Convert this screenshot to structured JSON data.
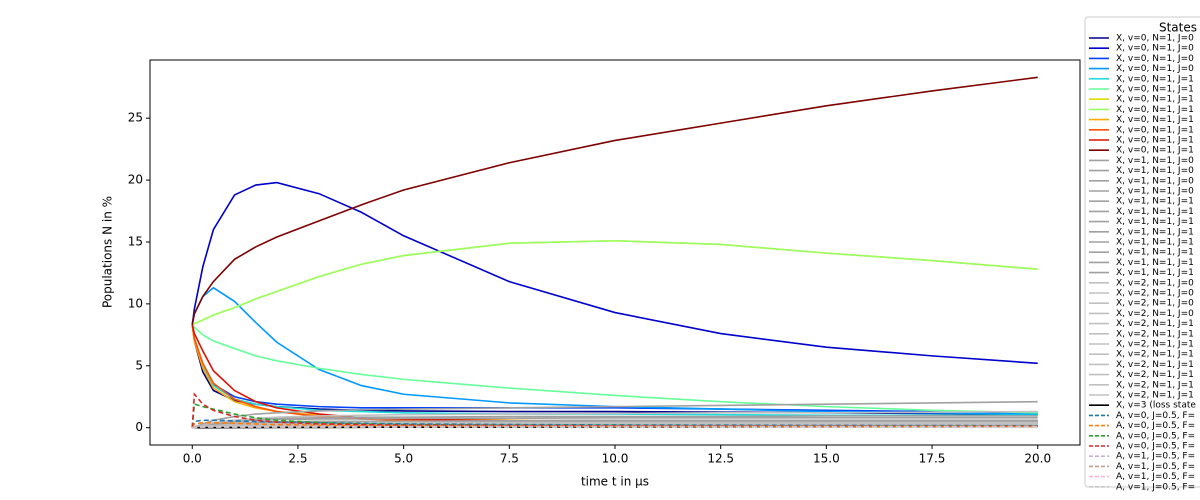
{
  "chart_data": {
    "type": "line",
    "xlabel": "time t in μs",
    "ylabel": "Populations N in %",
    "legend_title": "States",
    "xlim": [
      -1,
      21
    ],
    "ylim": [
      -1.4,
      29.7
    ],
    "xticks": [
      {
        "value": 0,
        "label": "0.0"
      },
      2.5,
      {
        "value": 5,
        "label": "5.0"
      },
      7.5,
      {
        "value": 10,
        "label": "10.0"
      },
      12.5,
      {
        "value": 15,
        "label": "15.0"
      },
      17.5,
      {
        "value": 20,
        "label": "20.0"
      }
    ],
    "yticks": [
      0,
      5,
      10,
      15,
      20,
      25
    ],
    "x": [
      0,
      0.05,
      0.25,
      0.5,
      1,
      1.5,
      2,
      3,
      4,
      5,
      7.5,
      10,
      12.5,
      15,
      17.5,
      20
    ],
    "series": [
      {
        "name": "X, v=0, N=1, J=0",
        "color": "#00008b",
        "values": [
          8.33,
          7.0,
          4.5,
          3.0,
          2.2,
          1.9,
          1.7,
          1.5,
          1.4,
          1.35,
          1.3,
          1.3,
          1.25,
          1.2,
          1.15,
          1.1
        ]
      },
      {
        "name": "X, v=0, N=1, J=0",
        "color": "#0000cc",
        "values": [
          8.33,
          9.6,
          13,
          16,
          18.8,
          19.6,
          19.8,
          18.9,
          17.4,
          15.5,
          11.8,
          9.3,
          7.6,
          6.5,
          5.8,
          5.2
        ]
      },
      {
        "name": "X, v=0, N=1, J=0",
        "color": "#0044ff",
        "values": [
          8.33,
          7.2,
          5,
          3.5,
          2.5,
          2.1,
          1.9,
          1.7,
          1.6,
          1.6,
          1.6,
          1.6,
          1.5,
          1.4,
          1.3,
          1.2
        ]
      },
      {
        "name": "X, v=0, N=1, J=0",
        "color": "#0099ff",
        "values": [
          8.33,
          9.2,
          10.6,
          11.3,
          10.2,
          8.5,
          6.9,
          4.7,
          3.4,
          2.7,
          2.0,
          1.7,
          1.5,
          1.3,
          1.2,
          1.1
        ]
      },
      {
        "name": "X, v=0, N=1, J=1",
        "color": "#22dddd",
        "values": [
          8.33,
          7.1,
          5,
          3.4,
          2.3,
          1.9,
          1.7,
          1.4,
          1.3,
          1.2,
          1.1,
          1.1,
          1.05,
          1.0,
          1.0,
          1.0
        ]
      },
      {
        "name": "X, v=0, N=1, J=1",
        "color": "#66ff99",
        "values": [
          8.33,
          8.1,
          7.5,
          7,
          6.4,
          5.8,
          5.4,
          4.8,
          4.3,
          3.9,
          3.2,
          2.6,
          2.1,
          1.7,
          1.4,
          1.2
        ]
      },
      {
        "name": "X, v=0, N=1, J=1",
        "color": "#dddd00",
        "values": [
          8.33,
          8.4,
          8.7,
          9.1,
          9.7,
          10.4,
          11,
          12.2,
          13.2,
          13.9,
          14.9,
          15.1,
          14.8,
          14.1,
          13.5,
          12.8
        ]
      },
      {
        "name": "X, v=0, N=1, J=1",
        "color": "#99ff66",
        "values": [
          8.33,
          8.4,
          8.7,
          9.1,
          9.7,
          10.4,
          11,
          12.2,
          13.2,
          13.9,
          14.9,
          15.1,
          14.8,
          14.1,
          13.5,
          12.8
        ]
      },
      {
        "name": "X, v=0, N=1, J=1",
        "color": "#ffaa00",
        "values": [
          8.33,
          7.0,
          4.8,
          3.2,
          2.1,
          1.6,
          1.3,
          1.0,
          0.8,
          0.7,
          0.6,
          0.5,
          0.45,
          0.4,
          0.4,
          0.4
        ]
      },
      {
        "name": "X, v=0, N=1, J=1",
        "color": "#ff5500",
        "values": [
          8.33,
          7.2,
          5.2,
          3.6,
          2.3,
          1.7,
          1.3,
          0.9,
          0.7,
          0.6,
          0.5,
          0.45,
          0.4,
          0.4,
          0.4,
          0.35
        ]
      },
      {
        "name": "X, v=0, N=1, J=1",
        "color": "#dd1100",
        "values": [
          8.33,
          7.6,
          6.2,
          4.6,
          3.0,
          2.1,
          1.6,
          1.1,
          0.8,
          0.7,
          0.55,
          0.5,
          0.45,
          0.4,
          0.4,
          0.4
        ]
      },
      {
        "name": "X, v=0, N=1, J=1",
        "color": "#7f0000",
        "values": [
          8.33,
          9.2,
          10.6,
          11.8,
          13.6,
          14.6,
          15.4,
          16.7,
          18.0,
          19.2,
          21.4,
          23.2,
          24.6,
          26.0,
          27.2,
          28.3
        ]
      },
      {
        "name": "X, v=1, N=1, J=0",
        "color": "#a0a0a0",
        "values": [
          0,
          0.05,
          0.3,
          0.6,
          0.9,
          1.1,
          1.2,
          1.35,
          1.45,
          1.5,
          1.6,
          1.7,
          1.8,
          1.9,
          2.0,
          2.1
        ]
      },
      {
        "name": "X, v=1, N=1, J=0",
        "color": "#a0a0a0",
        "values": [
          0,
          0.03,
          0.15,
          0.25,
          0.35,
          0.4,
          0.45,
          0.5,
          0.5,
          0.5,
          0.5,
          0.5,
          0.5,
          0.5,
          0.5,
          0.5
        ]
      },
      {
        "name": "X, v=1, N=1, J=0",
        "color": "#a0a0a0",
        "values": [
          0,
          0.03,
          0.12,
          0.2,
          0.3,
          0.35,
          0.4,
          0.45,
          0.5,
          0.5,
          0.55,
          0.6,
          0.6,
          0.6,
          0.6,
          0.6
        ]
      },
      {
        "name": "X, v=1, N=1, J=0",
        "color": "#a0a0a0",
        "values": [
          0,
          0.02,
          0.1,
          0.15,
          0.2,
          0.25,
          0.3,
          0.3,
          0.3,
          0.3,
          0.3,
          0.3,
          0.3,
          0.3,
          0.3,
          0.3
        ]
      },
      {
        "name": "X, v=1, N=1, J=1",
        "color": "#a0a0a0",
        "values": [
          0,
          0.04,
          0.2,
          0.4,
          0.6,
          0.7,
          0.75,
          0.8,
          0.85,
          0.85,
          0.9,
          0.9,
          0.9,
          0.95,
          0.95,
          0.95
        ]
      },
      {
        "name": "X, v=1, N=1, J=1",
        "color": "#a0a0a0",
        "values": [
          0,
          0.03,
          0.15,
          0.25,
          0.35,
          0.4,
          0.45,
          0.5,
          0.5,
          0.5,
          0.5,
          0.5,
          0.5,
          0.5,
          0.5,
          0.5
        ]
      },
      {
        "name": "X, v=1, N=1, J=1",
        "color": "#a0a0a0",
        "values": [
          0,
          0.02,
          0.1,
          0.15,
          0.2,
          0.25,
          0.3,
          0.3,
          0.3,
          0.3,
          0.3,
          0.3,
          0.3,
          0.3,
          0.3,
          0.3
        ]
      },
      {
        "name": "X, v=1, N=1, J=1",
        "color": "#a0a0a0",
        "values": [
          0,
          0.03,
          0.12,
          0.2,
          0.3,
          0.35,
          0.4,
          0.45,
          0.5,
          0.5,
          0.55,
          0.6,
          0.6,
          0.6,
          0.6,
          0.6
        ]
      },
      {
        "name": "X, v=1, N=1, J=1",
        "color": "#a0a0a0",
        "values": [
          0,
          0.02,
          0.08,
          0.12,
          0.16,
          0.2,
          0.22,
          0.25,
          0.25,
          0.25,
          0.25,
          0.25,
          0.25,
          0.25,
          0.25,
          0.25
        ]
      },
      {
        "name": "X, v=1, N=1, J=1",
        "color": "#a0a0a0",
        "values": [
          0,
          0.03,
          0.15,
          0.25,
          0.35,
          0.4,
          0.45,
          0.5,
          0.5,
          0.5,
          0.5,
          0.5,
          0.5,
          0.5,
          0.5,
          0.5
        ]
      },
      {
        "name": "X, v=1, N=1, J=1",
        "color": "#a0a0a0",
        "values": [
          0,
          0.04,
          0.2,
          0.35,
          0.5,
          0.6,
          0.65,
          0.7,
          0.7,
          0.75,
          0.75,
          0.8,
          0.8,
          0.8,
          0.8,
          0.8
        ]
      },
      {
        "name": "X, v=1, N=1, J=1",
        "color": "#a0a0a0",
        "values": [
          0,
          0.02,
          0.1,
          0.15,
          0.2,
          0.25,
          0.3,
          0.3,
          0.3,
          0.3,
          0.3,
          0.3,
          0.3,
          0.3,
          0.3,
          0.3
        ]
      },
      {
        "name": "X, v=2, N=1, J=0",
        "color": "#c0c0c0",
        "values": [
          0,
          0.02,
          0.2,
          0.4,
          0.6,
          0.75,
          0.85,
          0.95,
          1.0,
          1.05,
          1.1,
          1.15,
          1.2,
          1.2,
          1.25,
          1.3
        ]
      },
      {
        "name": "X, v=2, N=1, J=0",
        "color": "#c0c0c0",
        "values": [
          0,
          0.01,
          0.05,
          0.1,
          0.15,
          0.18,
          0.2,
          0.22,
          0.22,
          0.22,
          0.22,
          0.22,
          0.22,
          0.22,
          0.22,
          0.22
        ]
      },
      {
        "name": "X, v=2, N=1, J=0",
        "color": "#c0c0c0",
        "values": [
          0,
          0.01,
          0.06,
          0.12,
          0.18,
          0.22,
          0.25,
          0.28,
          0.3,
          0.3,
          0.3,
          0.3,
          0.3,
          0.3,
          0.3,
          0.3
        ]
      },
      {
        "name": "X, v=2, N=1, J=0",
        "color": "#c0c0c0",
        "values": [
          0,
          0.01,
          0.04,
          0.08,
          0.1,
          0.12,
          0.14,
          0.15,
          0.15,
          0.15,
          0.15,
          0.15,
          0.15,
          0.15,
          0.15,
          0.15
        ]
      },
      {
        "name": "X, v=2, N=1, J=1",
        "color": "#c0c0c0",
        "values": [
          0,
          0.01,
          0.08,
          0.15,
          0.25,
          0.3,
          0.35,
          0.4,
          0.4,
          0.4,
          0.4,
          0.4,
          0.4,
          0.4,
          0.4,
          0.4
        ]
      },
      {
        "name": "X, v=2, N=1, J=1",
        "color": "#c0c0c0",
        "values": [
          0,
          0.01,
          0.05,
          0.1,
          0.15,
          0.18,
          0.2,
          0.22,
          0.22,
          0.22,
          0.22,
          0.22,
          0.22,
          0.22,
          0.22,
          0.22
        ]
      },
      {
        "name": "X, v=2, N=1, J=1",
        "color": "#c0c0c0",
        "values": [
          0,
          0.01,
          0.04,
          0.08,
          0.1,
          0.12,
          0.14,
          0.15,
          0.15,
          0.15,
          0.15,
          0.15,
          0.15,
          0.15,
          0.15,
          0.15
        ]
      },
      {
        "name": "X, v=2, N=1, J=1",
        "color": "#c0c0c0",
        "values": [
          0,
          0.01,
          0.06,
          0.12,
          0.18,
          0.22,
          0.25,
          0.28,
          0.3,
          0.3,
          0.3,
          0.3,
          0.3,
          0.3,
          0.3,
          0.3
        ]
      },
      {
        "name": "X, v=2, N=1, J=1",
        "color": "#c0c0c0",
        "values": [
          0,
          0.01,
          0.05,
          0.1,
          0.15,
          0.18,
          0.2,
          0.22,
          0.22,
          0.22,
          0.22,
          0.22,
          0.22,
          0.22,
          0.22,
          0.22
        ]
      },
      {
        "name": "X, v=2, N=1, J=1",
        "color": "#c0c0c0",
        "values": [
          0,
          0.01,
          0.08,
          0.15,
          0.25,
          0.3,
          0.35,
          0.4,
          0.4,
          0.4,
          0.4,
          0.4,
          0.4,
          0.4,
          0.4,
          0.4
        ]
      },
      {
        "name": "X, v=2, N=1, J=1",
        "color": "#c0c0c0",
        "values": [
          0,
          0.01,
          0.04,
          0.08,
          0.1,
          0.12,
          0.14,
          0.15,
          0.15,
          0.15,
          0.15,
          0.15,
          0.15,
          0.15,
          0.15,
          0.15
        ]
      },
      {
        "name": "X, v=2, N=1, J=1",
        "color": "#c0c0c0",
        "values": [
          0,
          0.01,
          0.05,
          0.1,
          0.15,
          0.18,
          0.2,
          0.22,
          0.22,
          0.22,
          0.22,
          0.22,
          0.22,
          0.22,
          0.22,
          0.22
        ]
      },
      {
        "name": "X, v=3 (loss state",
        "color": "#000000",
        "values": [
          0,
          0,
          0,
          0,
          0.01,
          0.01,
          0.02,
          0.02,
          0.03,
          0.04,
          0.05,
          0.06,
          0.07,
          0.08,
          0.09,
          0.1
        ]
      },
      {
        "name": "A, v=0, J=0.5, F=",
        "color": "#1f77b4",
        "linestyle": "dashed",
        "values": [
          0,
          0.5,
          0.6,
          0.6,
          0.55,
          0.5,
          0.45,
          0.4,
          0.35,
          0.3,
          0.25,
          0.22,
          0.2,
          0.18,
          0.17,
          0.16
        ]
      },
      {
        "name": "A, v=0, J=0.5, F=",
        "color": "#ff7f0e",
        "linestyle": "dashed",
        "values": [
          0,
          0.3,
          0.4,
          0.4,
          0.35,
          0.3,
          0.25,
          0.2,
          0.18,
          0.15,
          0.12,
          0.1,
          0.1,
          0.1,
          0.1,
          0.1
        ]
      },
      {
        "name": "A, v=0, J=0.5, F=",
        "color": "#2ca02c",
        "linestyle": "dashed",
        "values": [
          0,
          1.9,
          1.7,
          1.5,
          1.1,
          0.8,
          0.6,
          0.4,
          0.3,
          0.25,
          0.2,
          0.18,
          0.16,
          0.15,
          0.14,
          0.13
        ]
      },
      {
        "name": "A, v=0, J=0.5, F=",
        "color": "#d62728",
        "linestyle": "dashed",
        "values": [
          0,
          2.7,
          1.9,
          1.4,
          0.9,
          0.6,
          0.45,
          0.3,
          0.25,
          0.2,
          0.17,
          0.15,
          0.14,
          0.13,
          0.12,
          0.12
        ]
      },
      {
        "name": "A, v=1, J=0.5, F=",
        "color": "#c5b0d5",
        "linestyle": "dashed",
        "values": [
          0,
          0.05,
          0.1,
          0.1,
          0.1,
          0.1,
          0.1,
          0.1,
          0.1,
          0.1,
          0.1,
          0.1,
          0.1,
          0.1,
          0.1,
          0.1
        ]
      },
      {
        "name": "A, v=1, J=0.5, F=",
        "color": "#c49c94",
        "linestyle": "dashed",
        "values": [
          0,
          0.04,
          0.08,
          0.08,
          0.08,
          0.08,
          0.08,
          0.08,
          0.08,
          0.08,
          0.08,
          0.08,
          0.08,
          0.08,
          0.08,
          0.08
        ]
      },
      {
        "name": "A, v=1, J=0.5, F=",
        "color": "#f7b6d2",
        "linestyle": "dashed",
        "values": [
          0,
          0.03,
          0.06,
          0.06,
          0.06,
          0.06,
          0.06,
          0.06,
          0.06,
          0.06,
          0.06,
          0.06,
          0.06,
          0.06,
          0.06,
          0.06
        ]
      },
      {
        "name": "A, v=1, J=0.5, F=",
        "color": "#c7c7c7",
        "linestyle": "dashed",
        "values": [
          0,
          0.02,
          0.05,
          0.05,
          0.05,
          0.05,
          0.05,
          0.05,
          0.05,
          0.05,
          0.05,
          0.05,
          0.05,
          0.05,
          0.05,
          0.05
        ]
      }
    ]
  }
}
